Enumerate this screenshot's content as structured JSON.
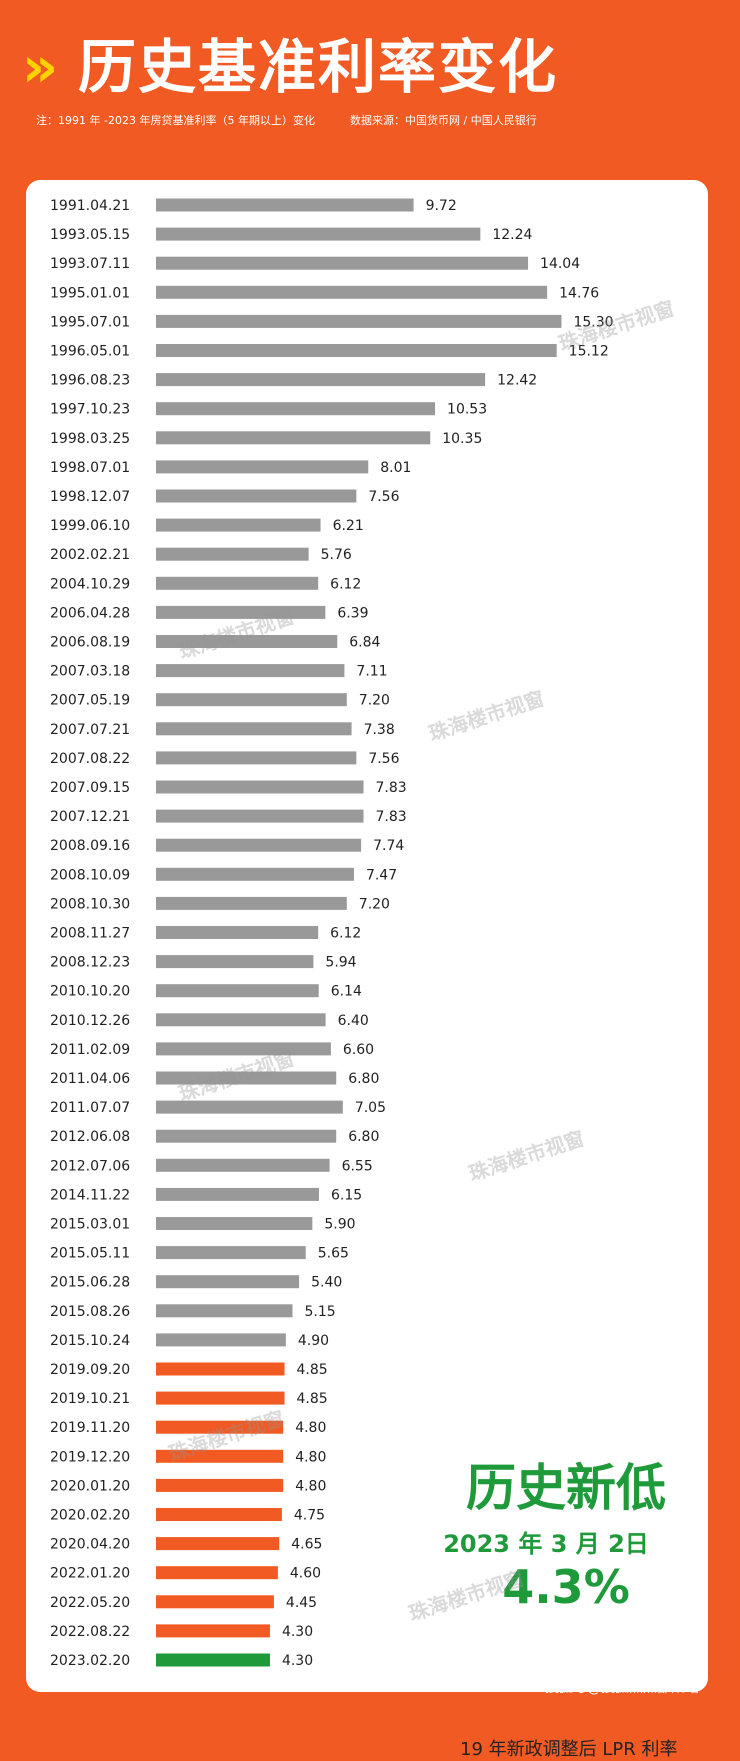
{
  "header": {
    "chevrons": "»",
    "title": "历史基准利率变化",
    "note": "注：1991 年 -2023 年房贷基准利率（5 年期以上）变化",
    "source": "数据来源：中国货币网 / 中国人民银行"
  },
  "colors": {
    "background": "#f15a22",
    "bar_base": "#999999",
    "bar_lpr": "#f15a22",
    "bar_latest": "#1f9a3a",
    "overlay_text": "#1f9a3a"
  },
  "overlay": {
    "title": "历史新低",
    "date": "2023 年 3 月 2日",
    "value": "4.3%"
  },
  "legend": {
    "label": "19 年新政调整后 LPR 利率"
  },
  "watermark": {
    "text": "珠海楼市视窗"
  },
  "footer": {
    "text": "搜狐号@搜狐焦点邵阳站"
  },
  "chart_data": {
    "type": "bar",
    "orientation": "horizontal",
    "categories": [
      "1991.04.21",
      "1993.05.15",
      "1993.07.11",
      "1995.01.01",
      "1995.07.01",
      "1996.05.01",
      "1996.08.23",
      "1997.10.23",
      "1998.03.25",
      "1998.07.01",
      "1998.12.07",
      "1999.06.10",
      "2002.02.21",
      "2004.10.29",
      "2006.04.28",
      "2006.08.19",
      "2007.03.18",
      "2007.05.19",
      "2007.07.21",
      "2007.08.22",
      "2007.09.15",
      "2007.12.21",
      "2008.09.16",
      "2008.10.09",
      "2008.10.30",
      "2008.11.27",
      "2008.12.23",
      "2010.10.20",
      "2010.12.26",
      "2011.02.09",
      "2011.04.06",
      "2011.07.07",
      "2012.06.08",
      "2012.07.06",
      "2014.11.22",
      "2015.03.01",
      "2015.05.11",
      "2015.06.28",
      "2015.08.26",
      "2015.10.24",
      "2019.09.20",
      "2019.10.21",
      "2019.11.20",
      "2019.12.20",
      "2020.01.20",
      "2020.02.20",
      "2020.04.20",
      "2022.01.20",
      "2022.05.20",
      "2022.08.22",
      "2023.02.20"
    ],
    "values": [
      9.72,
      12.24,
      14.04,
      14.76,
      15.3,
      15.12,
      12.42,
      10.53,
      10.35,
      8.01,
      7.56,
      6.21,
      5.76,
      6.12,
      6.39,
      6.84,
      7.11,
      7.2,
      7.38,
      7.56,
      7.83,
      7.83,
      7.74,
      7.47,
      7.2,
      6.12,
      5.94,
      6.14,
      6.4,
      6.6,
      6.8,
      7.05,
      6.8,
      6.55,
      6.15,
      5.9,
      5.65,
      5.4,
      5.15,
      4.9,
      4.85,
      4.85,
      4.8,
      4.8,
      4.8,
      4.75,
      4.65,
      4.6,
      4.45,
      4.3,
      4.3
    ],
    "labels": [
      "9.72",
      "12.24",
      "14.04",
      "14.76",
      "15.30",
      "15.12",
      "12.42",
      "10.53",
      "10.35",
      "8.01",
      "7.56",
      "6.21",
      "5.76",
      "6.12",
      "6.39",
      "6.84",
      "7.11",
      "7.20",
      "7.38",
      "7.56",
      "7.83",
      "7.83",
      "7.74",
      "7.47",
      "7.20",
      "6.12",
      "5.94",
      "6.14",
      "6.40",
      "6.60",
      "6.80",
      "7.05",
      "6.80",
      "6.55",
      "6.15",
      "5.90",
      "5.65",
      "5.40",
      "5.15",
      "4.90",
      "4.85",
      "4.85",
      "4.80",
      "4.80",
      "4.80",
      "4.75",
      "4.65",
      "4.60",
      "4.45",
      "4.30",
      "4.30"
    ],
    "groups": [
      "base",
      "base",
      "base",
      "base",
      "base",
      "base",
      "base",
      "base",
      "base",
      "base",
      "base",
      "base",
      "base",
      "base",
      "base",
      "base",
      "base",
      "base",
      "base",
      "base",
      "base",
      "base",
      "base",
      "base",
      "base",
      "base",
      "base",
      "base",
      "base",
      "base",
      "base",
      "base",
      "base",
      "base",
      "base",
      "base",
      "base",
      "base",
      "base",
      "base",
      "lpr",
      "lpr",
      "lpr",
      "lpr",
      "lpr",
      "lpr",
      "lpr",
      "lpr",
      "lpr",
      "lpr",
      "latest"
    ],
    "xlim": [
      0,
      15.3
    ],
    "grid": false,
    "legend_position": "bottom-right"
  }
}
